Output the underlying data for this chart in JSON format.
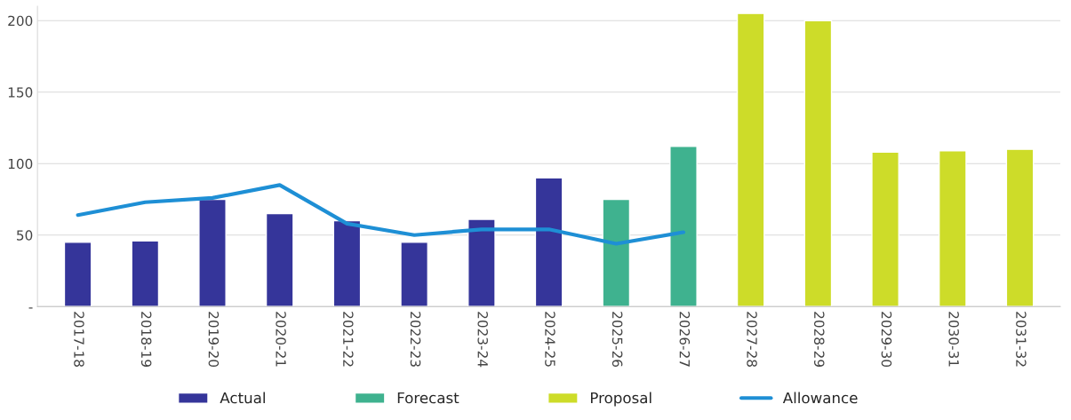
{
  "chart_data": {
    "type": "bar",
    "categories": [
      "2017-18",
      "2018-19",
      "2019-20",
      "2020-21",
      "2021-22",
      "2022-23",
      "2023-24",
      "2024-25",
      "2025-26",
      "2026-27",
      "2027-28",
      "2028-29",
      "2029-30",
      "2030-31",
      "2031-32"
    ],
    "series": [
      {
        "name": "Actual",
        "color": "#35359a",
        "values": [
          45,
          46,
          75,
          65,
          60,
          45,
          61,
          90,
          null,
          null,
          null,
          null,
          null,
          null,
          null
        ]
      },
      {
        "name": "Forecast",
        "color": "#3fb28f",
        "values": [
          null,
          null,
          null,
          null,
          null,
          null,
          null,
          null,
          75,
          112,
          null,
          null,
          null,
          null,
          null
        ]
      },
      {
        "name": "Proposal",
        "color": "#cddc29",
        "values": [
          null,
          null,
          null,
          null,
          null,
          null,
          null,
          null,
          null,
          null,
          205,
          200,
          108,
          109,
          110
        ]
      },
      {
        "name": "Allowance",
        "color": "#1e8fd5",
        "type": "line",
        "values": [
          64,
          73,
          76,
          85,
          58,
          50,
          54,
          54,
          44,
          52,
          null,
          null,
          null,
          null,
          null
        ]
      }
    ],
    "ylim": [
      0,
      210
    ],
    "yticks": [
      {
        "value": 0,
        "label": "-"
      },
      50,
      100,
      150,
      200
    ],
    "grid": "y",
    "legend": "bottom",
    "marker": "none",
    "line_style": "solid"
  }
}
